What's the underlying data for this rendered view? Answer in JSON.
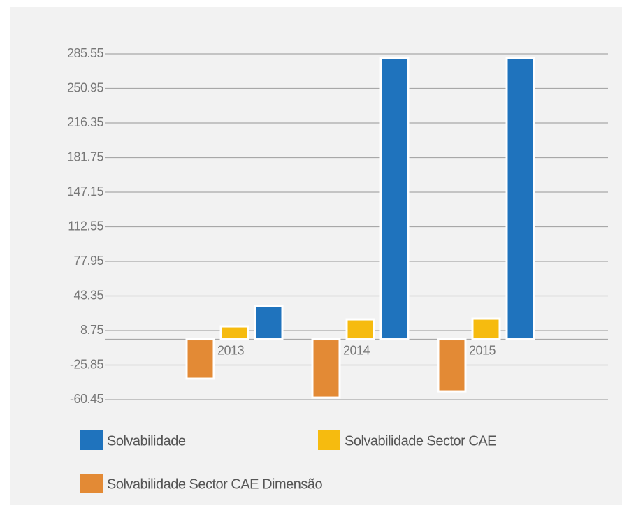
{
  "chart_data": {
    "type": "bar",
    "categories": [
      "2013",
      "2014",
      "2015"
    ],
    "series": [
      {
        "name": "Solvabilidade Sector CAE Dimensão",
        "color": "#e38a35",
        "values": [
          -39.5,
          -58.4,
          -52.1
        ]
      },
      {
        "name": "Solvabilidade Sector CAE",
        "color": "#f6bb0f",
        "values": [
          12.9,
          19.9,
          20.6
        ]
      },
      {
        "name": "Solvabilidade",
        "color": "#1f73bd",
        "values": [
          33.2,
          281.3,
          281.3
        ]
      }
    ],
    "legend_order": [
      2,
      1,
      0
    ],
    "ylim": [
      -60.45,
      285.55
    ],
    "yticks": [
      -60.45,
      -25.85,
      8.75,
      43.35,
      77.95,
      112.55,
      147.15,
      181.75,
      216.35,
      250.95,
      285.55
    ],
    "grid": true
  }
}
